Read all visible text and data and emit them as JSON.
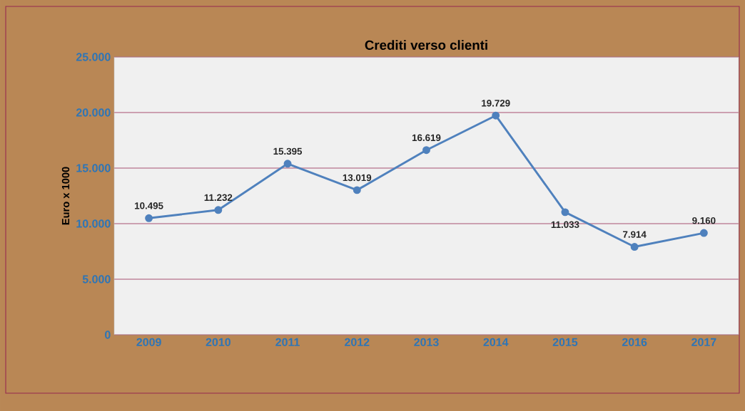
{
  "chart_data": {
    "type": "line",
    "title": "Crediti verso clienti",
    "ylabel": "Euro x 1000",
    "categories": [
      "2009",
      "2010",
      "2011",
      "2012",
      "2013",
      "2014",
      "2015",
      "2016",
      "2017"
    ],
    "series": [
      {
        "color": "#4f81bd",
        "values": [
          10495,
          11232,
          15395,
          13019,
          16619,
          19729,
          11033,
          7914,
          9160
        ],
        "value_labels": [
          "10.495",
          "11.232",
          "15.395",
          "13.019",
          "16.619",
          "19.729",
          "11.033",
          "7.914",
          "9.160"
        ]
      }
    ],
    "ylim": [
      0,
      25000
    ],
    "yticks": [
      {
        "value": 0,
        "label": "0"
      },
      {
        "value": 5000,
        "label": "5.000"
      },
      {
        "value": 10000,
        "label": "10.000"
      },
      {
        "value": 15000,
        "label": "15.000"
      },
      {
        "value": 20000,
        "label": "20.000"
      },
      {
        "value": 25000,
        "label": "25.000"
      }
    ],
    "grid": "y",
    "marker": "circle",
    "line_style": "solid"
  }
}
